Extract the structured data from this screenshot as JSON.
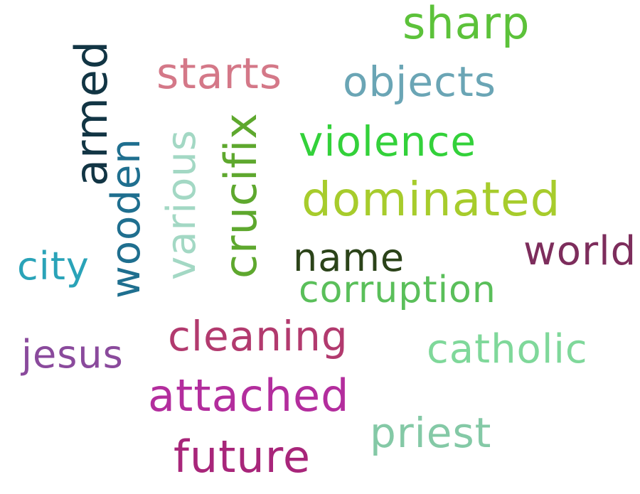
{
  "words": [
    {
      "text": "sharp",
      "color": "#5cc23a",
      "orientation": "horizontal"
    },
    {
      "text": "starts",
      "color": "#d47888",
      "orientation": "horizontal"
    },
    {
      "text": "objects",
      "color": "#6aa5b5",
      "orientation": "horizontal"
    },
    {
      "text": "violence",
      "color": "#33d13a",
      "orientation": "horizontal"
    },
    {
      "text": "dominated",
      "color": "#a7cc2c",
      "orientation": "horizontal"
    },
    {
      "text": "name",
      "color": "#2b4319",
      "orientation": "horizontal"
    },
    {
      "text": "world",
      "color": "#7d2d5c",
      "orientation": "horizontal"
    },
    {
      "text": "city",
      "color": "#2aa3b8",
      "orientation": "horizontal"
    },
    {
      "text": "corruption",
      "color": "#5abf5a",
      "orientation": "horizontal"
    },
    {
      "text": "cleaning",
      "color": "#b23a6e",
      "orientation": "horizontal"
    },
    {
      "text": "catholic",
      "color": "#7fd89a",
      "orientation": "horizontal"
    },
    {
      "text": "jesus",
      "color": "#8a4a9c",
      "orientation": "horizontal"
    },
    {
      "text": "attached",
      "color": "#b32d9d",
      "orientation": "horizontal"
    },
    {
      "text": "priest",
      "color": "#84c9a6",
      "orientation": "horizontal"
    },
    {
      "text": "future",
      "color": "#a8267a",
      "orientation": "horizontal"
    },
    {
      "text": "armed",
      "color": "#123544",
      "orientation": "vertical"
    },
    {
      "text": "wooden",
      "color": "#1f6f8f",
      "orientation": "vertical"
    },
    {
      "text": "various",
      "color": "#a3d8c4",
      "orientation": "vertical"
    },
    {
      "text": "crucifix",
      "color": "#5ea82e",
      "orientation": "vertical"
    }
  ]
}
